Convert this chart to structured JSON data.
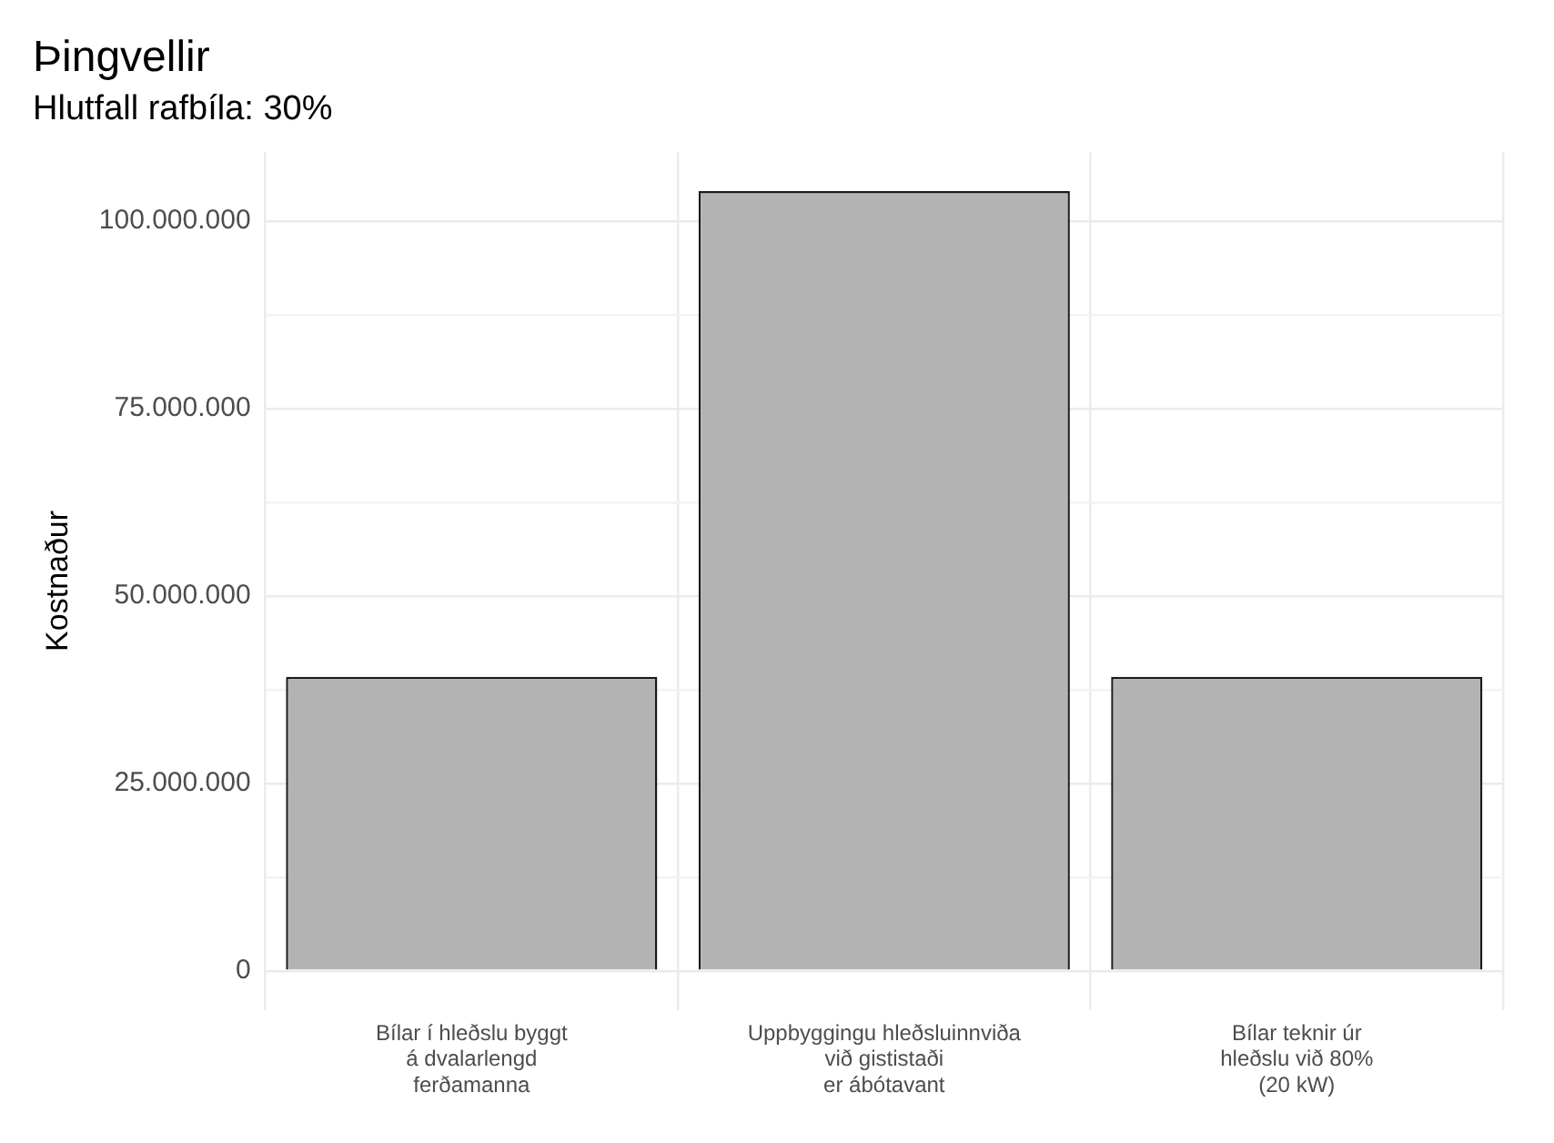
{
  "chart_data": {
    "type": "bar",
    "title": "Þingvellir",
    "subtitle": "Hlutfall rafbíla: 30%",
    "ylabel": "Kostnaður",
    "categories": [
      "Bílar í hleðslu byggt\ná dvalarlengd\nferðamanna",
      "Uppbyggingu hleðsluinnviða\nvið gististaði\ner ábótavant",
      "Bílar teknir úr\nhleðslu við 80%\n(20 kW)"
    ],
    "values": [
      39200000,
      104000000,
      39200000
    ],
    "color": "#b3b3b3",
    "ylim": [
      -5200000,
      109200000
    ],
    "yticks": [
      {
        "value": 0,
        "label": "0"
      },
      {
        "value": 12500000,
        "label": null
      },
      {
        "value": 25000000,
        "label": "25.000.000"
      },
      {
        "value": 37500000,
        "label": null
      },
      {
        "value": 50000000,
        "label": "50.000.000"
      },
      {
        "value": 62500000,
        "label": null
      },
      {
        "value": 75000000,
        "label": "75.000.000"
      },
      {
        "value": 87500000,
        "label": null
      },
      {
        "value": 100000000,
        "label": "100.000.000"
      }
    ],
    "grid": true
  }
}
